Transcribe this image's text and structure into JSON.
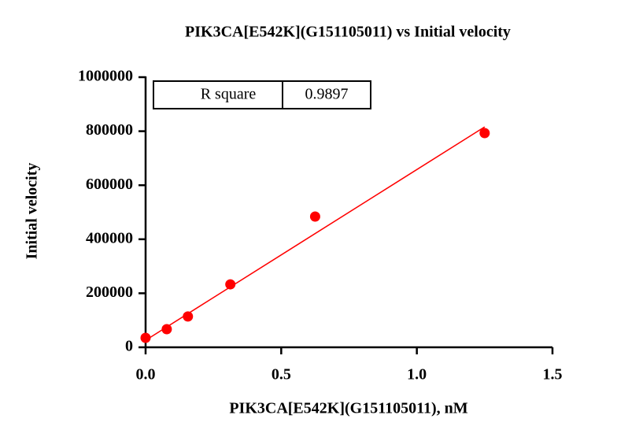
{
  "chart_data": {
    "type": "scatter",
    "title": "PIK3CA[E542K](G151105011) vs Initial velocity",
    "x_label": "PIK3CA[E542K](G151105011), nM",
    "y_label": "Initial velocity",
    "series": [
      {
        "name": "Initial velocity",
        "color": "#ff0000",
        "x": [
          0,
          0.078,
          0.156,
          0.3125,
          0.625,
          1.25
        ],
        "values": [
          35000,
          67000,
          114000,
          233000,
          484000,
          793000
        ]
      }
    ],
    "fit": {
      "color": "#ff0000",
      "x": [
        0,
        1.25
      ],
      "values": [
        26000,
        816000
      ]
    },
    "stats": {
      "label": "R square",
      "value": 0.9897
    },
    "xlim": [
      0,
      1.5
    ],
    "xticks": [
      {
        "value": 0,
        "label": "0.0"
      },
      0.5,
      {
        "value": 1,
        "label": "1.0"
      },
      1.5
    ],
    "ylim": [
      0,
      1000000
    ],
    "yticks": [
      0,
      200000,
      400000,
      600000,
      800000,
      1000000
    ]
  }
}
